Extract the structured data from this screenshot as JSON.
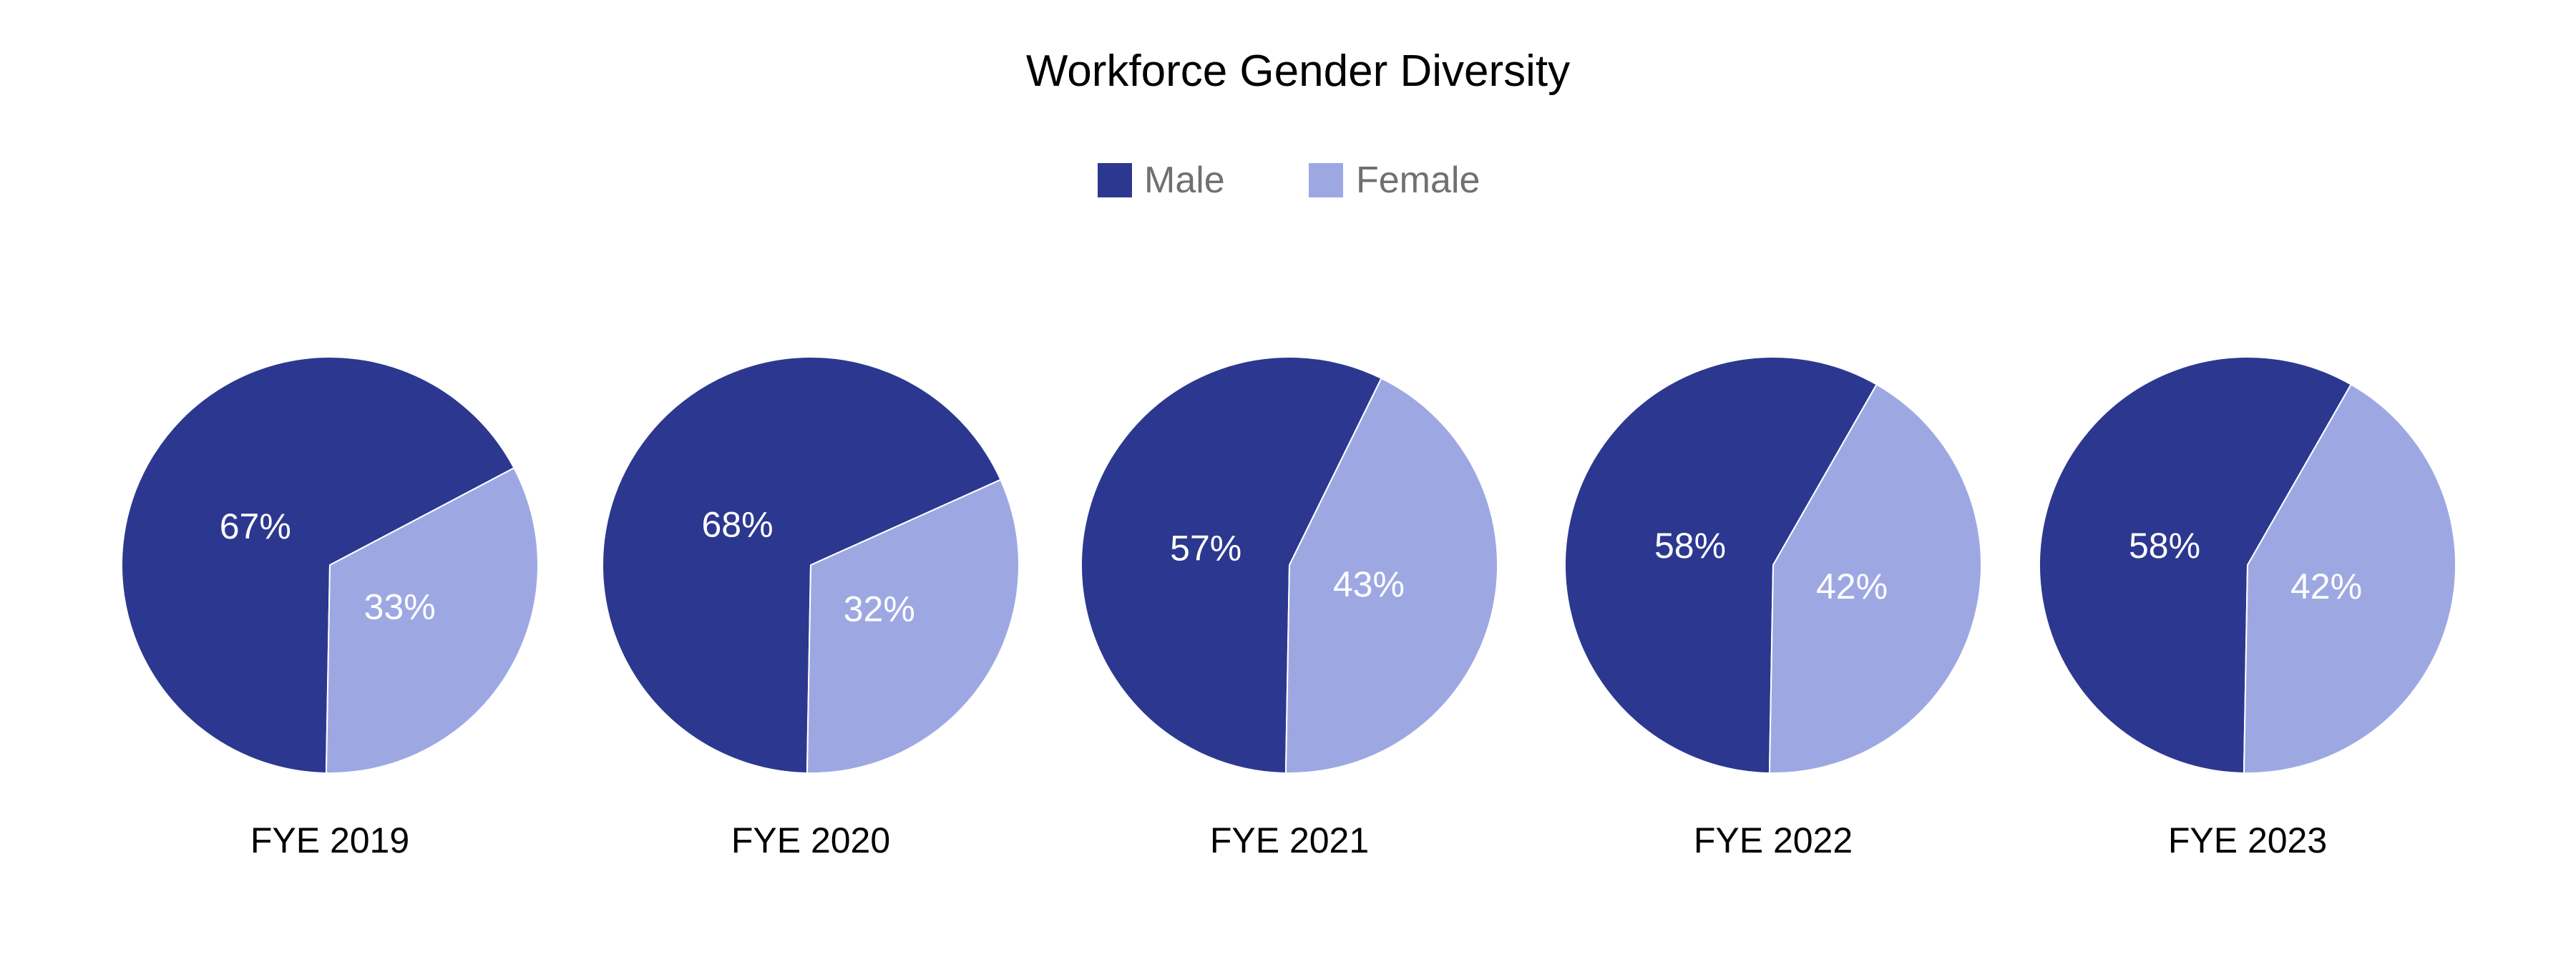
{
  "chart_data": {
    "type": "pie",
    "title": "Workforce Gender Diversity",
    "legend_position": "top-center",
    "series_names": [
      "Male",
      "Female"
    ],
    "colors": {
      "Male": "#2c388f",
      "Female": "#9da8e3",
      "label_text": "#ffffff",
      "legend_text": "#707070"
    },
    "pies": [
      {
        "label": "FYE 2019",
        "values": [
          67,
          33
        ],
        "value_labels": [
          "67%",
          "33%"
        ]
      },
      {
        "label": "FYE 2020",
        "values": [
          68,
          32
        ],
        "value_labels": [
          "68%",
          "32%"
        ]
      },
      {
        "label": "FYE 2021",
        "values": [
          57,
          43
        ],
        "value_labels": [
          "57%",
          "43%"
        ]
      },
      {
        "label": "FYE 2022",
        "values": [
          58,
          42
        ],
        "value_labels": [
          "58%",
          "42%"
        ]
      },
      {
        "label": "FYE 2023",
        "values": [
          58,
          42
        ],
        "value_labels": [
          "58%",
          "42%"
        ]
      }
    ]
  }
}
